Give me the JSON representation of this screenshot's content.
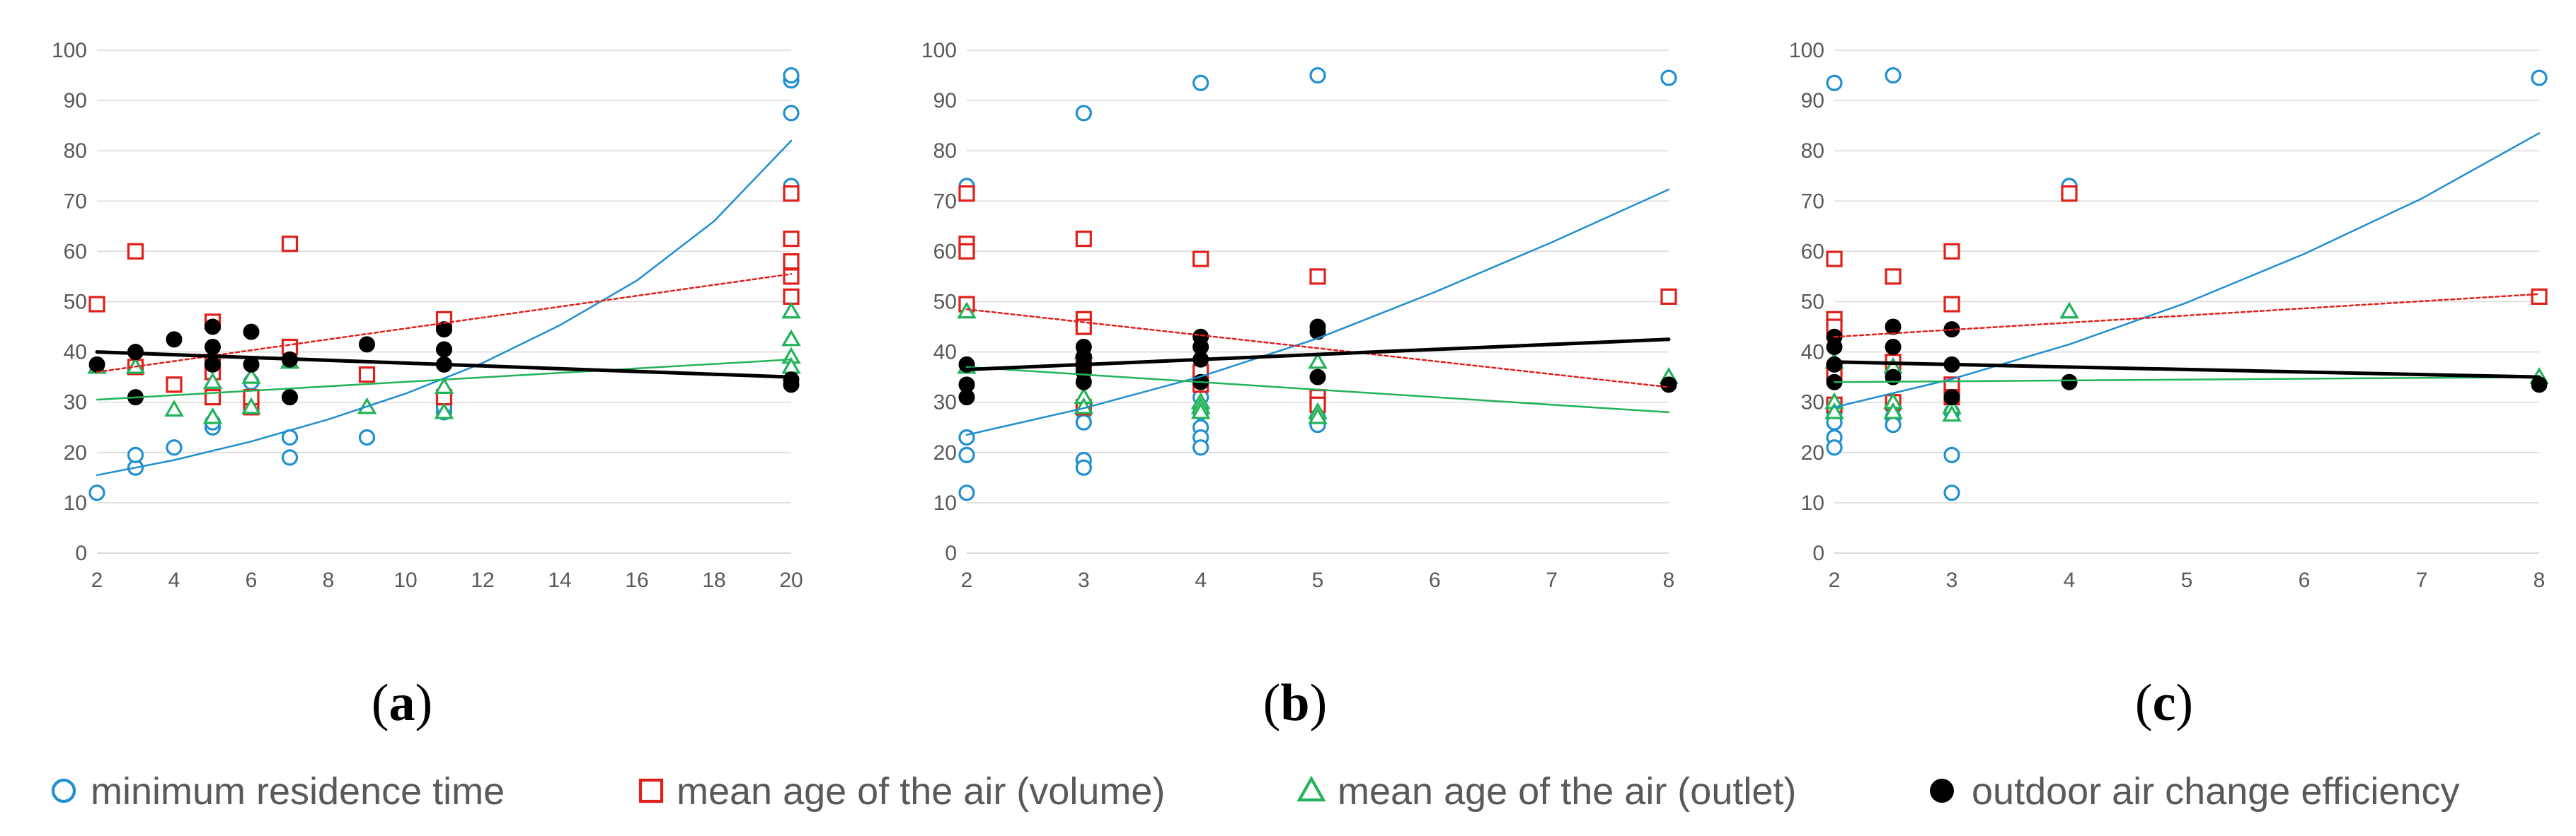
{
  "colors": {
    "minimum_residence_time": "#1f8fd0",
    "mean_age_volume": "#e0201b",
    "mean_age_outlet": "#22b35a",
    "outdoor_air_change_efficiency": "#000000",
    "grid": "#d9d9d9",
    "tick_text": "#595959"
  },
  "legend": [
    {
      "key": "minimum_residence_time",
      "label": "minimum residence time",
      "marker": "circle-open"
    },
    {
      "key": "mean_age_volume",
      "label": "mean age of the air (volume)",
      "marker": "square-open"
    },
    {
      "key": "mean_age_outlet",
      "label": "mean age of the air (outlet)",
      "marker": "triangle-open"
    },
    {
      "key": "outdoor_air_change_efficiency",
      "label": "outdoor air change efficiency",
      "marker": "circle-filled"
    }
  ],
  "chart_data": [
    {
      "type": "scatter",
      "panel_label": "(a)",
      "panel_letter": "a",
      "xlim": [
        2,
        20
      ],
      "xticks": [
        2,
        4,
        6,
        8,
        10,
        12,
        14,
        16,
        18,
        20
      ],
      "ylim": [
        0,
        100
      ],
      "yticks": [
        0,
        10,
        20,
        30,
        40,
        50,
        60,
        70,
        80,
        90,
        100
      ],
      "series": [
        {
          "key": "minimum_residence_time",
          "points": [
            [
              2,
              12
            ],
            [
              3,
              17
            ],
            [
              3,
              19.5
            ],
            [
              4,
              21
            ],
            [
              5,
              25
            ],
            [
              5,
              26
            ],
            [
              6,
              29
            ],
            [
              6,
              31
            ],
            [
              6,
              34
            ],
            [
              7,
              19
            ],
            [
              7,
              23
            ],
            [
              9,
              23
            ],
            [
              11,
              28
            ],
            [
              11,
              29
            ],
            [
              20,
              87.5
            ],
            [
              20,
              94
            ],
            [
              20,
              95
            ],
            [
              20,
              73
            ]
          ]
        },
        {
          "key": "mean_age_volume",
          "points": [
            [
              2,
              49.5
            ],
            [
              3,
              60
            ],
            [
              3,
              37
            ],
            [
              4,
              33.5
            ],
            [
              5,
              46
            ],
            [
              5,
              38
            ],
            [
              5,
              36
            ],
            [
              5,
              31
            ],
            [
              6,
              29
            ],
            [
              6,
              31
            ],
            [
              7,
              61.5
            ],
            [
              7,
              41
            ],
            [
              9,
              35.5
            ],
            [
              11,
              46.5
            ],
            [
              11,
              31
            ],
            [
              20,
              71.5
            ],
            [
              20,
              62.5
            ],
            [
              20,
              58
            ],
            [
              20,
              55
            ],
            [
              20,
              51
            ]
          ]
        },
        {
          "key": "mean_age_outlet",
          "points": [
            [
              2,
              37
            ],
            [
              3,
              37
            ],
            [
              4,
              28.5
            ],
            [
              5,
              34
            ],
            [
              5,
              27
            ],
            [
              6,
              29
            ],
            [
              6,
              35
            ],
            [
              7,
              38
            ],
            [
              9,
              29
            ],
            [
              11,
              33
            ],
            [
              11,
              28
            ],
            [
              20,
              48
            ],
            [
              20,
              42.5
            ],
            [
              20,
              39
            ],
            [
              20,
              37
            ]
          ]
        },
        {
          "key": "outdoor_air_change_efficiency",
          "points": [
            [
              2,
              37.5
            ],
            [
              3,
              40
            ],
            [
              3,
              31
            ],
            [
              4,
              42.5
            ],
            [
              5,
              45
            ],
            [
              5,
              41
            ],
            [
              5,
              37.5
            ],
            [
              6,
              44
            ],
            [
              6,
              37.5
            ],
            [
              7,
              38.5
            ],
            [
              7,
              31
            ],
            [
              9,
              41.5
            ],
            [
              11,
              44.5
            ],
            [
              11,
              40.5
            ],
            [
              11,
              37.5
            ],
            [
              20,
              34.5
            ],
            [
              20,
              33.5
            ]
          ]
        }
      ],
      "trendlines": [
        {
          "key": "minimum_residence_time",
          "kind": "exponential",
          "points": [
            [
              2,
              15.5
            ],
            [
              4,
              18.5
            ],
            [
              6,
              22.2
            ],
            [
              8,
              26.6
            ],
            [
              10,
              31.7
            ],
            [
              12,
              37.8
            ],
            [
              14,
              45.3
            ],
            [
              16,
              54.2
            ],
            [
              18,
              66
            ],
            [
              20,
              82
            ]
          ]
        },
        {
          "key": "mean_age_volume",
          "kind": "linear",
          "points": [
            [
              2,
              36
            ],
            [
              20,
              55.5
            ]
          ]
        },
        {
          "key": "mean_age_outlet",
          "kind": "linear",
          "points": [
            [
              2,
              30.5
            ],
            [
              20,
              38.5
            ]
          ]
        },
        {
          "key": "outdoor_air_change_efficiency",
          "kind": "linear",
          "points": [
            [
              2,
              40
            ],
            [
              20,
              35
            ]
          ]
        }
      ]
    },
    {
      "type": "scatter",
      "panel_label": "(b)",
      "panel_letter": "b",
      "xlim": [
        2,
        8
      ],
      "xticks": [
        2,
        3,
        4,
        5,
        6,
        7,
        8
      ],
      "ylim": [
        0,
        100
      ],
      "yticks": [
        0,
        10,
        20,
        30,
        40,
        50,
        60,
        70,
        80,
        90,
        100
      ],
      "series": [
        {
          "key": "minimum_residence_time",
          "points": [
            [
              2,
              73
            ],
            [
              2,
              23
            ],
            [
              2,
              19.5
            ],
            [
              2,
              12
            ],
            [
              3,
              87.5
            ],
            [
              3,
              28
            ],
            [
              3,
              26
            ],
            [
              3,
              18.5
            ],
            [
              3,
              17
            ],
            [
              4,
              93.5
            ],
            [
              4,
              31
            ],
            [
              4,
              28
            ],
            [
              4,
              25
            ],
            [
              4,
              23
            ],
            [
              4,
              21
            ],
            [
              5,
              95
            ],
            [
              5,
              29
            ],
            [
              5,
              27
            ],
            [
              5,
              25.5
            ],
            [
              8,
              94.5
            ]
          ]
        },
        {
          "key": "mean_age_volume",
          "points": [
            [
              2,
              71.5
            ],
            [
              2,
              61.5
            ],
            [
              2,
              60
            ],
            [
              2,
              49.5
            ],
            [
              3,
              62.5
            ],
            [
              3,
              46.5
            ],
            [
              3,
              45
            ],
            [
              3,
              38
            ],
            [
              3,
              29
            ],
            [
              4,
              58.5
            ],
            [
              4,
              36
            ],
            [
              4,
              33.5
            ],
            [
              5,
              55
            ],
            [
              5,
              31
            ],
            [
              5,
              29.5
            ],
            [
              8,
              51
            ]
          ]
        },
        {
          "key": "mean_age_outlet",
          "points": [
            [
              2,
              48
            ],
            [
              2,
              37
            ],
            [
              3,
              40
            ],
            [
              3,
              31
            ],
            [
              3,
              29
            ],
            [
              4,
              30
            ],
            [
              4,
              29
            ],
            [
              4,
              28
            ],
            [
              5,
              38
            ],
            [
              5,
              28
            ],
            [
              5,
              27
            ],
            [
              8,
              35
            ]
          ]
        },
        {
          "key": "outdoor_air_change_efficiency",
          "points": [
            [
              2,
              37.5
            ],
            [
              2,
              33.5
            ],
            [
              2,
              31
            ],
            [
              3,
              41
            ],
            [
              3,
              39
            ],
            [
              3,
              37.5
            ],
            [
              3,
              36
            ],
            [
              3,
              34
            ],
            [
              4,
              43
            ],
            [
              4,
              41
            ],
            [
              4,
              38.5
            ],
            [
              4,
              34
            ],
            [
              5,
              45
            ],
            [
              5,
              44
            ],
            [
              5,
              35
            ],
            [
              8,
              33.5
            ]
          ]
        }
      ],
      "trendlines": [
        {
          "key": "minimum_residence_time",
          "kind": "exponential",
          "points": [
            [
              2,
              23.5
            ],
            [
              3,
              28.8
            ],
            [
              4,
              35.1
            ],
            [
              5,
              42.7
            ],
            [
              6,
              51.9
            ],
            [
              7,
              61.8
            ],
            [
              8,
              72.3
            ]
          ]
        },
        {
          "key": "mean_age_volume",
          "kind": "linear",
          "points": [
            [
              2,
              48.5
            ],
            [
              8,
              33
            ]
          ]
        },
        {
          "key": "mean_age_outlet",
          "kind": "linear",
          "points": [
            [
              2,
              37
            ],
            [
              8,
              28
            ]
          ]
        },
        {
          "key": "outdoor_air_change_efficiency",
          "kind": "linear",
          "points": [
            [
              2,
              36.5
            ],
            [
              8,
              42.5
            ]
          ]
        }
      ]
    },
    {
      "type": "scatter",
      "panel_label": "(c)",
      "panel_letter": "c",
      "xlim": [
        2,
        8
      ],
      "xticks": [
        2,
        3,
        4,
        5,
        6,
        7,
        8
      ],
      "ylim": [
        0,
        100
      ],
      "yticks": [
        0,
        10,
        20,
        30,
        40,
        50,
        60,
        70,
        80,
        90,
        100
      ],
      "series": [
        {
          "key": "minimum_residence_time",
          "points": [
            [
              2,
              93.5
            ],
            [
              2,
              28
            ],
            [
              2,
              26
            ],
            [
              2,
              23
            ],
            [
              2,
              21
            ],
            [
              2.5,
              95
            ],
            [
              2.5,
              29
            ],
            [
              2.5,
              27
            ],
            [
              2.5,
              25.5
            ],
            [
              3,
              28
            ],
            [
              3,
              19.5
            ],
            [
              3,
              12
            ],
            [
              4,
              73
            ],
            [
              8,
              94.5
            ]
          ]
        },
        {
          "key": "mean_age_volume",
          "points": [
            [
              2,
              58.5
            ],
            [
              2,
              46.5
            ],
            [
              2,
              45
            ],
            [
              2,
              36
            ],
            [
              2,
              29.5
            ],
            [
              2.5,
              55
            ],
            [
              2.5,
              38
            ],
            [
              2.5,
              30
            ],
            [
              3,
              60
            ],
            [
              3,
              49.5
            ],
            [
              3,
              33.5
            ],
            [
              3,
              31
            ],
            [
              4,
              71.5
            ],
            [
              8,
              51
            ]
          ]
        },
        {
          "key": "mean_age_outlet",
          "points": [
            [
              2,
              38
            ],
            [
              2,
              30
            ],
            [
              2,
              28
            ],
            [
              2.5,
              37
            ],
            [
              2.5,
              30
            ],
            [
              2.5,
              28
            ],
            [
              3,
              29
            ],
            [
              3,
              27.5
            ],
            [
              4,
              48
            ],
            [
              8,
              35
            ]
          ]
        },
        {
          "key": "outdoor_air_change_efficiency",
          "points": [
            [
              2,
              43
            ],
            [
              2,
              41
            ],
            [
              2,
              37.5
            ],
            [
              2,
              34
            ],
            [
              2.5,
              45
            ],
            [
              2.5,
              41
            ],
            [
              2.5,
              35
            ],
            [
              3,
              44.5
            ],
            [
              3,
              37.5
            ],
            [
              3,
              31
            ],
            [
              4,
              34
            ],
            [
              8,
              33.5
            ]
          ]
        }
      ],
      "trendlines": [
        {
          "key": "minimum_residence_time",
          "kind": "exponential",
          "points": [
            [
              2,
              29
            ],
            [
              3,
              34.6
            ],
            [
              4,
              41.5
            ],
            [
              5,
              49.8
            ],
            [
              6,
              59.5
            ],
            [
              7,
              70.5
            ],
            [
              8,
              83.5
            ]
          ]
        },
        {
          "key": "mean_age_volume",
          "kind": "linear",
          "points": [
            [
              2,
              43
            ],
            [
              8,
              51.5
            ]
          ]
        },
        {
          "key": "mean_age_outlet",
          "kind": "linear",
          "points": [
            [
              2,
              34
            ],
            [
              8,
              35
            ]
          ]
        },
        {
          "key": "outdoor_air_change_efficiency",
          "kind": "linear",
          "points": [
            [
              2,
              38
            ],
            [
              8,
              35
            ]
          ]
        }
      ]
    }
  ]
}
